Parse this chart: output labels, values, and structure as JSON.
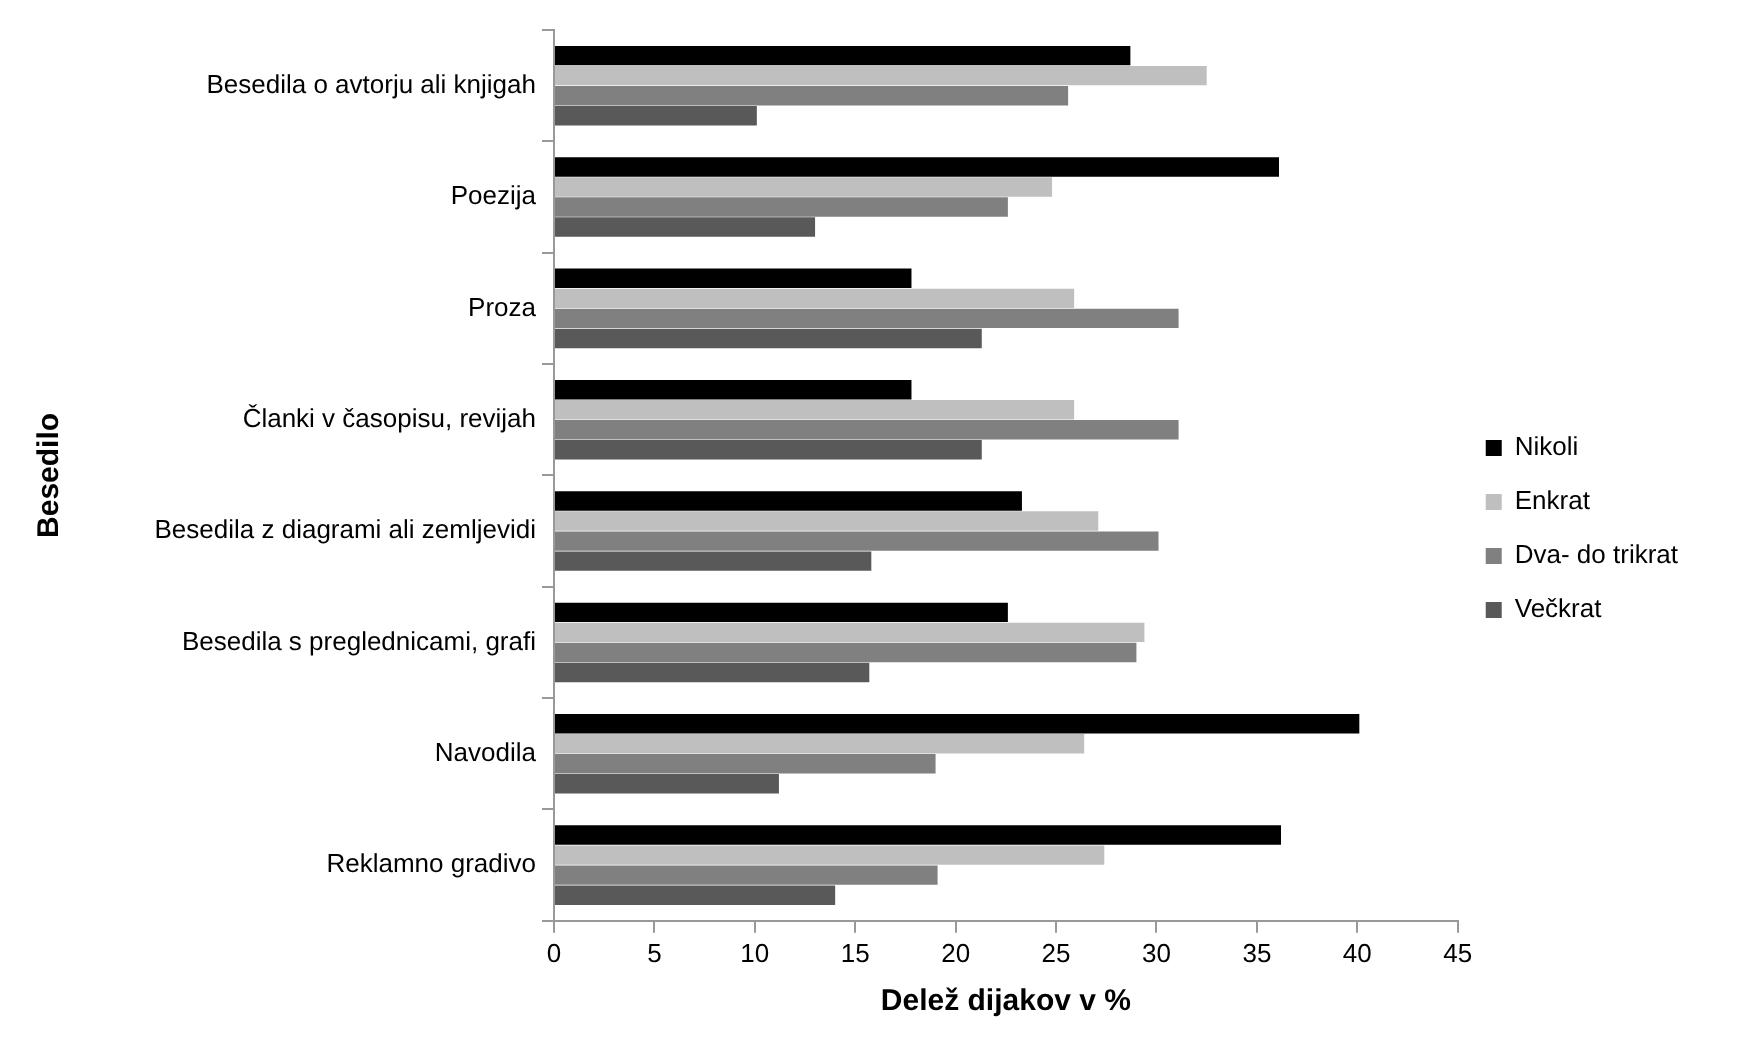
{
  "chart_data": {
    "type": "bar",
    "orientation": "horizontal",
    "xlabel": "Delež dijakov v %",
    "ylabel": "Besedilo",
    "categories": [
      "Besedila o avtorju ali knjigah",
      "Poezija",
      "Proza",
      "Članki v časopisu, revijah",
      "Besedila z diagrami ali zemljevidi",
      "Besedila s preglednicami, grafi",
      "Navodila",
      "Reklamno gradivo"
    ],
    "series": [
      {
        "name": "Nikoli",
        "color": "#000000",
        "values": [
          28.7,
          36.1,
          17.8,
          17.8,
          23.3,
          22.6,
          40.1,
          36.2
        ]
      },
      {
        "name": "Enkrat",
        "color": "#bfbfbf",
        "values": [
          32.5,
          24.8,
          25.9,
          25.9,
          27.1,
          29.4,
          26.4,
          27.4
        ]
      },
      {
        "name": "Dva- do trikrat",
        "color": "#808080",
        "values": [
          25.6,
          22.6,
          31.1,
          31.1,
          30.1,
          29.0,
          19.0,
          19.1
        ]
      },
      {
        "name": "Večkrat",
        "color": "#595959",
        "values": [
          10.1,
          13.0,
          21.3,
          21.3,
          15.8,
          15.7,
          11.2,
          14.0
        ]
      }
    ],
    "xlim": [
      0,
      45
    ],
    "xticks": [
      0,
      5,
      10,
      15,
      20,
      25,
      30,
      35,
      40,
      45
    ],
    "grid": false,
    "legend": "right"
  }
}
